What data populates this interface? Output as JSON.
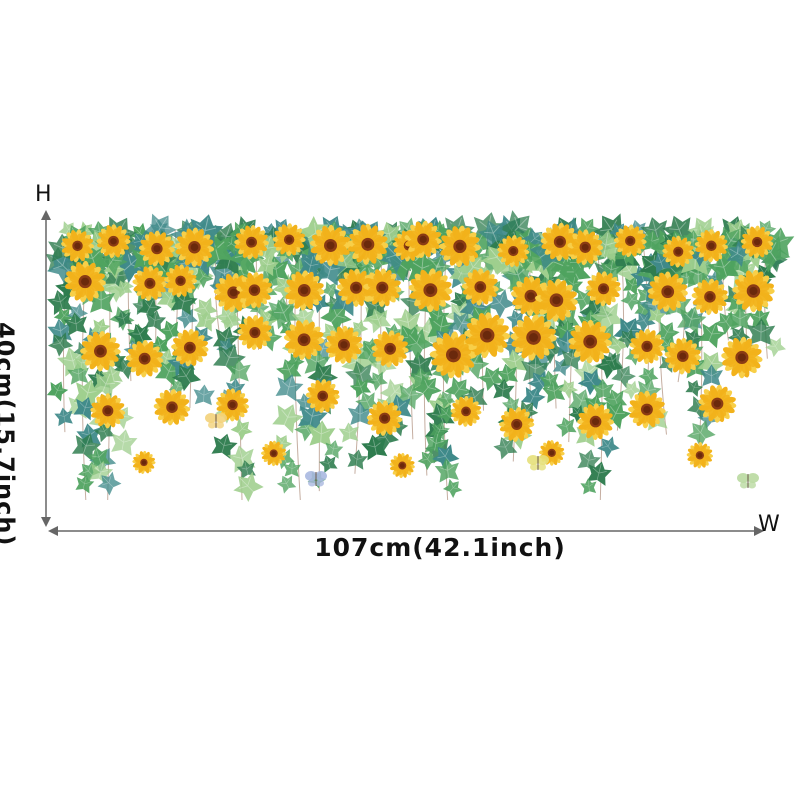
{
  "dimensions": {
    "height_axis_letter": "H",
    "width_axis_letter": "W",
    "height_label": "40cm(15.7inch)",
    "width_label": "107cm(42.1inch)"
  },
  "artwork": {
    "subject": "hanging-sunflower-vine-decal",
    "colors": {
      "petal": "#f2b21b",
      "petal_light": "#f8cf48",
      "center": "#8a3b14",
      "leaf_dark": "#2f7d4f",
      "leaf_mid": "#4fa35f",
      "leaf_light": "#9fcf8e",
      "leaf_teal": "#3f8a8a",
      "stem": "#b79a8a",
      "arrow": "#666666"
    }
  }
}
